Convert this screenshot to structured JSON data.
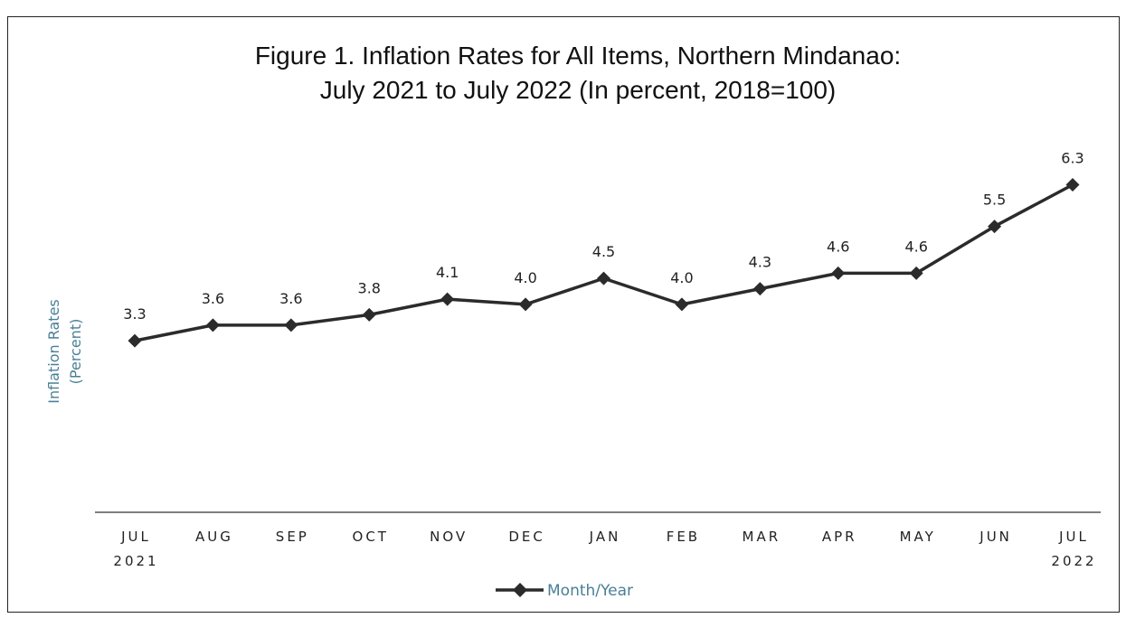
{
  "chart_data": {
    "type": "line",
    "title_line1": "Figure 1.  Inflation Rates for All Items, Northern Mindanao:",
    "title_line2": "July 2021 to July 2022 (In percent, 2018=100)",
    "ylabel_line1": "Inflation Rates",
    "ylabel_line2": "(Percent)",
    "ylabel_color": "#4a7f95",
    "line_color": "#2b2b2b",
    "categories": [
      [
        "JUL",
        "2021"
      ],
      [
        "AUG",
        ""
      ],
      [
        "SEP",
        ""
      ],
      [
        "OCT",
        ""
      ],
      [
        "NOV",
        ""
      ],
      [
        "DEC",
        ""
      ],
      [
        "JAN",
        ""
      ],
      [
        "FEB",
        ""
      ],
      [
        "MAR",
        ""
      ],
      [
        "APR",
        ""
      ],
      [
        "MAY",
        ""
      ],
      [
        "JUN",
        ""
      ],
      [
        "JUL",
        "2022"
      ]
    ],
    "series": [
      {
        "name": "Month/Year",
        "values": [
          3.3,
          3.6,
          3.6,
          3.8,
          4.1,
          4.0,
          4.5,
          4.0,
          4.3,
          4.6,
          4.6,
          5.5,
          6.3
        ],
        "labels": [
          "3.3",
          "3.6",
          "3.6",
          "3.8",
          "4.1",
          "4.0",
          "4.5",
          "4.0",
          "4.3",
          "4.6",
          "4.6",
          "5.5",
          "6.3"
        ],
        "marker": "diamond"
      }
    ],
    "ylim": [
      0,
      7.7
    ],
    "grid": false,
    "legend_position": "bottom-center"
  }
}
